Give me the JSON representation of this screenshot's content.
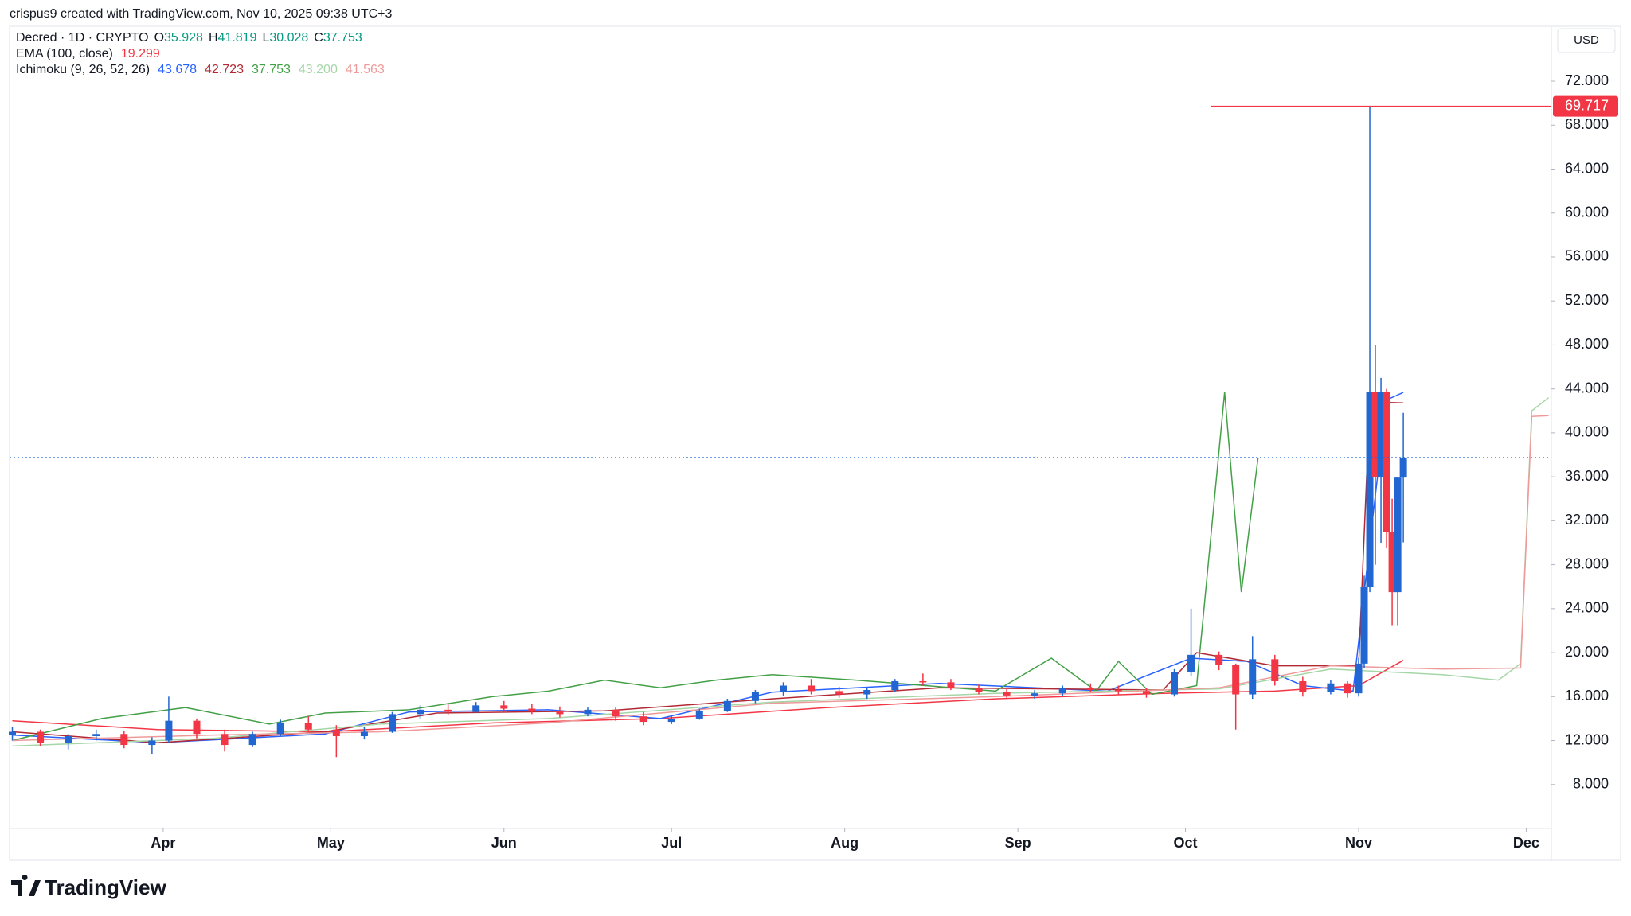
{
  "attribution": "crispus9 created with TradingView.com, Nov 10, 2025 09:38 UTC+3",
  "brand": "TradingView",
  "chart_data": {
    "type": "candlestick",
    "currency": "USD",
    "legend": [
      {
        "label": "Decred · 1D · CRYPTO",
        "items": [
          {
            "key": "O",
            "text": "35.928",
            "color": "#089981"
          },
          {
            "key": "H",
            "text": "41.819",
            "color": "#089981"
          },
          {
            "key": "L",
            "text": "30.028",
            "color": "#089981"
          },
          {
            "key": "C",
            "text": "37.753",
            "color": "#089981"
          }
        ]
      },
      {
        "label": "EMA (100, close)",
        "items": [
          {
            "text": "19.299",
            "color": "#f23645"
          }
        ]
      },
      {
        "label": "Ichimoku (9, 26, 52, 26)",
        "items": [
          {
            "text": "43.678",
            "color": "#2962ff"
          },
          {
            "text": "42.723",
            "color": "#b22833"
          },
          {
            "text": "37.753",
            "color": "#43a047"
          },
          {
            "text": "43.200",
            "color": "#a5d6a7"
          },
          {
            "text": "41.563",
            "color": "#ef9a9a"
          }
        ]
      }
    ],
    "up_color": "#2166d1",
    "down_color": "#f23645",
    "x": [
      64,
      69,
      74,
      79,
      84,
      89,
      92,
      97,
      102,
      107,
      112,
      117,
      122,
      127,
      132,
      137,
      142,
      147,
      152,
      157,
      162,
      167,
      172,
      177,
      182,
      187,
      192,
      197,
      202,
      207,
      212,
      217,
      222,
      227,
      232,
      237,
      242,
      247,
      252,
      257,
      262,
      267,
      272,
      275,
      280,
      283,
      286,
      290,
      295,
      300,
      303,
      305,
      306,
      307,
      308,
      309,
      310,
      311,
      312,
      313
    ],
    "open": [
      12.5,
      12.8,
      11.8,
      12.4,
      12.6,
      11.6,
      12.0,
      13.8,
      12.6,
      11.6,
      12.6,
      13.6,
      13.0,
      12.4,
      12.8,
      14.4,
      14.8,
      14.6,
      15.2,
      14.9,
      14.7,
      14.4,
      14.8,
      14.2,
      13.7,
      14.0,
      14.7,
      15.6,
      16.4,
      17.0,
      16.5,
      16.2,
      16.6,
      17.4,
      17.3,
      16.8,
      16.4,
      16.1,
      16.3,
      16.8,
      16.6,
      16.5,
      16.2,
      18.2,
      19.8,
      18.9,
      16.2,
      19.4,
      17.4,
      16.4,
      17.2,
      16.3,
      19.0,
      26.0,
      43.7,
      36.0,
      43.7,
      31.0,
      25.5,
      35.928
    ],
    "high": [
      13.2,
      13.0,
      12.6,
      13.0,
      12.9,
      12.3,
      16.0,
      14.0,
      13.0,
      12.8,
      13.9,
      14.2,
      13.4,
      13.2,
      14.6,
      15.2,
      15.3,
      15.5,
      15.6,
      15.3,
      15.1,
      15.0,
      15.0,
      14.6,
      14.2,
      14.9,
      15.8,
      16.6,
      17.3,
      17.6,
      16.9,
      16.8,
      17.6,
      18.1,
      17.6,
      17.1,
      16.8,
      16.6,
      17.0,
      17.2,
      17.0,
      16.8,
      18.5,
      24.0,
      20.1,
      19.0,
      21.5,
      19.8,
      17.8,
      17.5,
      17.4,
      19.5,
      27.0,
      69.717,
      48.0,
      45.0,
      44.0,
      34.0,
      36.0,
      41.819
    ],
    "low": [
      12.0,
      11.5,
      11.2,
      12.0,
      11.3,
      10.8,
      11.8,
      12.2,
      11.0,
      11.4,
      12.4,
      12.8,
      10.5,
      12.1,
      12.7,
      14.0,
      14.3,
      14.5,
      14.6,
      14.4,
      14.1,
      14.2,
      13.8,
      13.4,
      13.5,
      13.9,
      14.6,
      15.4,
      16.1,
      16.2,
      15.9,
      15.8,
      16.4,
      17.0,
      16.6,
      16.2,
      15.9,
      15.8,
      16.1,
      16.4,
      16.2,
      15.9,
      16.0,
      17.9,
      18.4,
      13.0,
      15.8,
      17.0,
      16.0,
      16.2,
      15.9,
      16.0,
      18.6,
      25.5,
      28.0,
      30.0,
      29.5,
      22.5,
      22.5,
      30.028
    ],
    "close": [
      12.8,
      11.8,
      12.4,
      12.6,
      11.6,
      12.0,
      13.8,
      12.6,
      11.6,
      12.6,
      13.6,
      13.0,
      12.4,
      12.8,
      14.4,
      14.8,
      14.6,
      15.2,
      14.9,
      14.7,
      14.4,
      14.8,
      14.2,
      13.7,
      14.0,
      14.7,
      15.6,
      16.4,
      17.0,
      16.5,
      16.2,
      16.6,
      17.4,
      17.3,
      16.8,
      16.4,
      16.1,
      16.3,
      16.8,
      16.6,
      16.5,
      16.2,
      18.2,
      19.8,
      18.9,
      16.2,
      19.4,
      17.4,
      16.4,
      17.2,
      16.3,
      19.0,
      26.0,
      43.7,
      36.0,
      43.7,
      31.0,
      25.5,
      35.928,
      37.753
    ],
    "lines": [
      {
        "color": "#f23645",
        "x": [
          64,
          90,
          120,
          150,
          180,
          210,
          240,
          270,
          290,
          305,
          313
        ],
        "values": [
          13.8,
          13.0,
          12.8,
          13.6,
          14.0,
          15.0,
          15.8,
          16.3,
          16.5,
          17.0,
          19.299
        ]
      },
      {
        "color": "#2962ff",
        "x": [
          64,
          90,
          120,
          135,
          160,
          180,
          200,
          230,
          260,
          275,
          285,
          295,
          304,
          307,
          310,
          313
        ],
        "values": [
          12.5,
          11.8,
          12.6,
          14.6,
          14.8,
          14.0,
          16.4,
          17.2,
          16.5,
          19.5,
          19.2,
          17.0,
          16.5,
          30,
          43,
          43.678
        ]
      },
      {
        "color": "#b22833",
        "x": [
          64,
          90,
          120,
          140,
          170,
          200,
          230,
          270,
          276,
          290,
          305,
          307,
          313
        ],
        "values": [
          12.8,
          11.8,
          12.8,
          14.5,
          14.7,
          15.8,
          16.8,
          16.6,
          20.0,
          18.8,
          18.8,
          42.8,
          42.723
        ]
      },
      {
        "color": "#43a047",
        "x": [
          64,
          80,
          95,
          110,
          120,
          135,
          150,
          160,
          170,
          180,
          190,
          200,
          215,
          240,
          250,
          258,
          262,
          268,
          276,
          281,
          284,
          287
        ],
        "values": [
          12,
          14,
          15,
          13.5,
          14.5,
          14.8,
          16.0,
          16.5,
          17.5,
          16.8,
          17.5,
          18.0,
          17.5,
          16.5,
          19.5,
          16.5,
          19.2,
          16.2,
          17.0,
          43.7,
          25.5,
          37.753
        ]
      },
      {
        "color": "#a5d6a7",
        "x": [
          64,
          100,
          130,
          160,
          200,
          240,
          280,
          300,
          320,
          330,
          334,
          336,
          339
        ],
        "values": [
          11.5,
          12.2,
          13.5,
          14.0,
          15.5,
          16.3,
          16.7,
          18.5,
          18.0,
          17.5,
          19,
          42,
          43.2
        ]
      },
      {
        "color": "#ef9a9a",
        "x": [
          64,
          100,
          130,
          160,
          200,
          240,
          280,
          300,
          320,
          334,
          336,
          339
        ],
        "values": [
          12.0,
          12.5,
          12.8,
          13.6,
          15.4,
          16.0,
          16.8,
          18.8,
          18.5,
          18.6,
          41.5,
          41.563
        ]
      }
    ],
    "xlim": [
      63.5,
      339.5
    ],
    "xticks": [
      {
        "value": 91,
        "label": "Apr"
      },
      {
        "value": 121,
        "label": "May"
      },
      {
        "value": 152,
        "label": "Jun"
      },
      {
        "value": 182,
        "label": "Jul"
      },
      {
        "value": 213,
        "label": "Aug"
      },
      {
        "value": 244,
        "label": "Sep"
      },
      {
        "value": 274,
        "label": "Oct"
      },
      {
        "value": 305,
        "label": "Nov"
      },
      {
        "value": 335,
        "label": "Dec"
      }
    ],
    "ylim": [
      4,
      77
    ],
    "yticks": [
      {
        "value": 8,
        "label": "8.000"
      },
      {
        "value": 12,
        "label": "12.000"
      },
      {
        "value": 16,
        "label": "16.000"
      },
      {
        "value": 20,
        "label": "20.000"
      },
      {
        "value": 24,
        "label": "24.000"
      },
      {
        "value": 28,
        "label": "28.000"
      },
      {
        "value": 32,
        "label": "32.000"
      },
      {
        "value": 36,
        "label": "36.000"
      },
      {
        "value": 40,
        "label": "40.000"
      },
      {
        "value": 44,
        "label": "44.000"
      },
      {
        "value": 48,
        "label": "48.000"
      },
      {
        "value": 52,
        "label": "52.000"
      },
      {
        "value": 56,
        "label": "56.000"
      },
      {
        "value": 60,
        "label": "60.000"
      },
      {
        "value": 64,
        "label": "64.000"
      },
      {
        "value": 68,
        "label": "68.000"
      },
      {
        "value": 72,
        "label": "72.000"
      }
    ]
  }
}
